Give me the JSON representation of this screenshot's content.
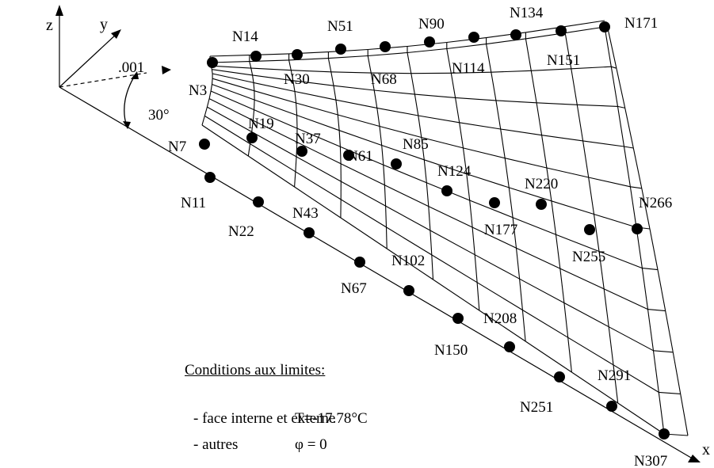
{
  "axes": {
    "x": "x",
    "y": "y",
    "z": "z"
  },
  "annotations": {
    "offset": ".001",
    "angle": "30°"
  },
  "conditions": {
    "title": "Conditions aux limites:",
    "items": [
      {
        "label": "- face interne et externe",
        "value": "T=-17.78°C"
      },
      {
        "label": "- autres",
        "value": "φ = 0"
      }
    ]
  },
  "nodes": [
    "N3",
    "N7",
    "N11",
    "N14",
    "N19",
    "N22",
    "N30",
    "N37",
    "N43",
    "N51",
    "N61",
    "N67",
    "N68",
    "N85",
    "N90",
    "N102",
    "N114",
    "N124",
    "N134",
    "N150",
    "N151",
    "N171",
    "N177",
    "N208",
    "N220",
    "N251",
    "N255",
    "N266",
    "N291",
    "N307"
  ]
}
